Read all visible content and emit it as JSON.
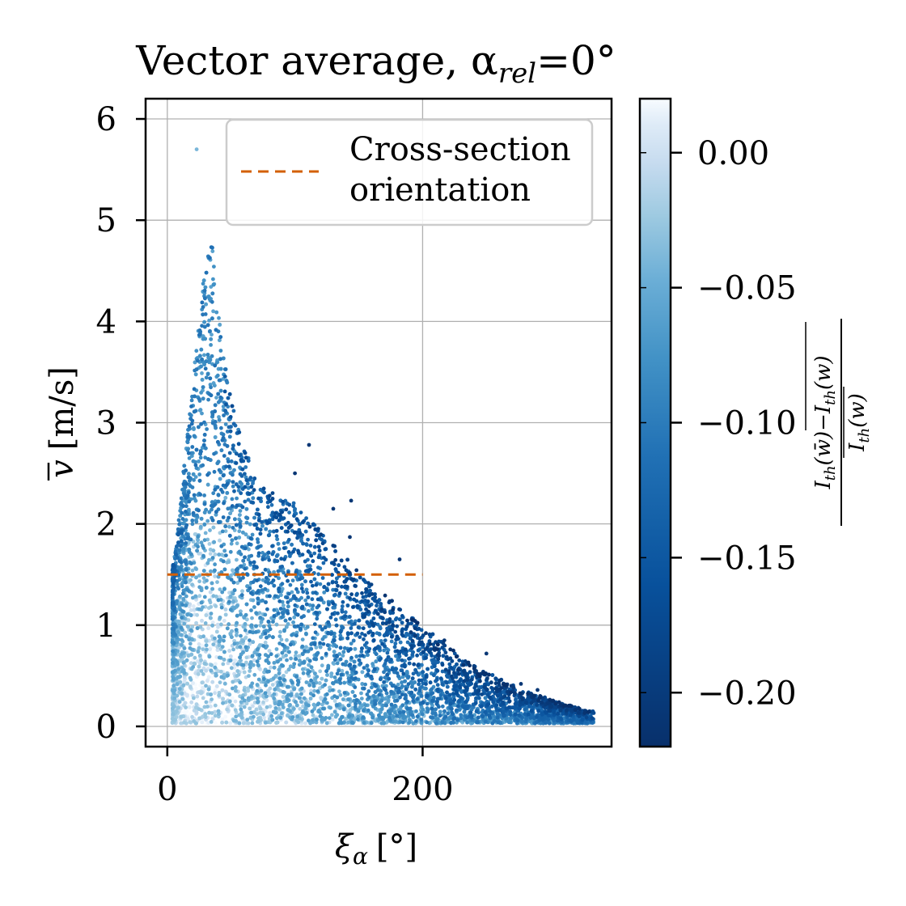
{
  "chart_data": {
    "type": "scatter",
    "title": "Vector average, α",
    "title_sub": "rel",
    "title_tail": "=0°",
    "xlabel_symbol": "ξ",
    "xlabel_sub": "α",
    "xlabel_unit": "[°]",
    "ylabel_symbol": "v",
    "ylabel_unit": "[m/s]",
    "xlim": [
      -17,
      348
    ],
    "ylim": [
      -0.2,
      6.2
    ],
    "xticks": [
      0,
      200
    ],
    "xtick_labels": [
      "0",
      "200"
    ],
    "yticks": [
      0,
      1,
      2,
      3,
      4,
      5,
      6
    ],
    "ytick_labels": [
      "0",
      "1",
      "2",
      "3",
      "4",
      "5",
      "6"
    ],
    "grid": true,
    "legend": {
      "placement": "upper right",
      "entries": [
        {
          "label_line1": "Cross-section",
          "label_line2": "orientation",
          "color": "#d35f00",
          "style": "dashed"
        }
      ]
    },
    "reference_line": {
      "name": "Cross-section orientation",
      "y": 1.5,
      "x": [
        0,
        200
      ],
      "color": "#d35f00"
    },
    "colorbar": {
      "cmap": "Blues_r",
      "range": [
        -0.22,
        0.02
      ],
      "ticks": [
        0.0,
        -0.05,
        -0.1,
        -0.15,
        -0.2
      ],
      "tick_labels": [
        "0.00",
        "−0.05",
        "−0.10",
        "−0.15",
        "−0.20"
      ],
      "label": "(I_th(w̄) − I_th(w)) / I_th(w)"
    },
    "scatter_envelope": [
      {
        "x": 5,
        "y_max": 1.6
      },
      {
        "x": 15,
        "y_max": 2.8
      },
      {
        "x": 25,
        "y_max": 4.0
      },
      {
        "x": 33,
        "y_max": 5.0
      },
      {
        "x": 40,
        "y_max": 4.2
      },
      {
        "x": 50,
        "y_max": 3.2
      },
      {
        "x": 70,
        "y_max": 2.4
      },
      {
        "x": 100,
        "y_max": 2.2
      },
      {
        "x": 130,
        "y_max": 1.8
      },
      {
        "x": 160,
        "y_max": 1.4
      },
      {
        "x": 200,
        "y_max": 1.0
      },
      {
        "x": 240,
        "y_max": 0.6
      },
      {
        "x": 280,
        "y_max": 0.35
      },
      {
        "x": 330,
        "y_max": 0.15
      }
    ],
    "outliers": [
      {
        "x": 23,
        "y": 5.7
      },
      {
        "x": 111,
        "y": 2.78
      },
      {
        "x": 100,
        "y": 2.5
      },
      {
        "x": 144,
        "y": 2.23
      },
      {
        "x": 130,
        "y": 2.15
      },
      {
        "x": 143,
        "y": 1.87
      },
      {
        "x": 182,
        "y": 1.65
      },
      {
        "x": 217,
        "y": 0.85
      },
      {
        "x": 250,
        "y": 0.72
      },
      {
        "x": 277,
        "y": 0.42
      },
      {
        "x": 290,
        "y": 0.36
      }
    ]
  }
}
